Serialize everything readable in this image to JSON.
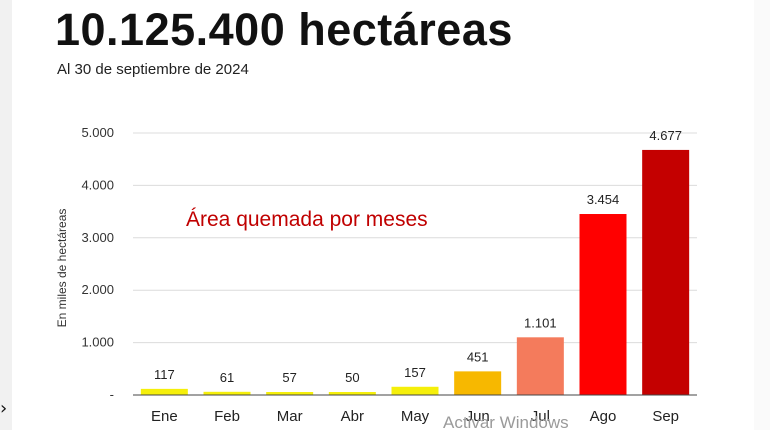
{
  "header": {
    "title": "10.125.400 hectáreas",
    "subtitle": "Al 30 de septiembre de 2024"
  },
  "watermark": "Activar Windows",
  "chart_data": {
    "type": "bar",
    "title": "Área quemada por meses",
    "ylabel": "En miles de hectáreas",
    "xlabel": "",
    "categories": [
      "Ene",
      "Feb",
      "Mar",
      "Abr",
      "May",
      "Jun",
      "Jul",
      "Ago",
      "Sep"
    ],
    "values": [
      117,
      61,
      57,
      50,
      157,
      451,
      1101,
      3454,
      4677
    ],
    "value_labels": [
      "117",
      "61",
      "57",
      "50",
      "157",
      "451",
      "1.101",
      "3.454",
      "4.677"
    ],
    "ylim": [
      0,
      5000
    ],
    "yticks": [
      0,
      1000,
      2000,
      3000,
      4000,
      5000
    ],
    "ytick_labels": [
      "-",
      "1.000",
      "2.000",
      "3.000",
      "4.000",
      "5.000"
    ],
    "grid": true,
    "legend": "none",
    "bar_colors": [
      "#f5ef0a",
      "#f5ef0a",
      "#f5ef0a",
      "#f5ef0a",
      "#f5ef0a",
      "#f7b800",
      "#f47b5c",
      "#ff0000",
      "#c40000"
    ],
    "title_color": "#c00000"
  }
}
